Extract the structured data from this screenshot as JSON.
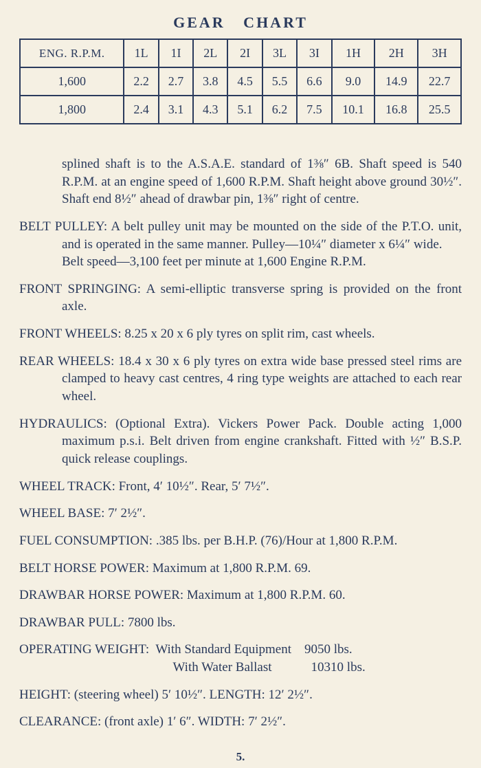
{
  "colors": {
    "background": "#f5f0e3",
    "text": "#2a3a5c",
    "border": "#2a3a5c"
  },
  "typography": {
    "font_family": "Georgia, 'Times New Roman', serif",
    "title_fontsize": 22,
    "body_fontsize": 19
  },
  "gear_chart": {
    "title": "GEAR CHART",
    "type": "table",
    "columns": [
      "ENG. R.P.M.",
      "1L",
      "1I",
      "2L",
      "2I",
      "3L",
      "3I",
      "1H",
      "2H",
      "3H"
    ],
    "rows": [
      [
        "1,600",
        "2.2",
        "2.7",
        "3.8",
        "4.5",
        "5.5",
        "6.6",
        "9.0",
        "14.9",
        "22.7"
      ],
      [
        "1,800",
        "2.4",
        "3.1",
        "4.3",
        "5.1",
        "6.2",
        "7.5",
        "10.1",
        "16.8",
        "25.5"
      ]
    ],
    "border_color": "#2a3a5c",
    "border_width": 2,
    "cell_fontsize": 18
  },
  "specs": [
    {
      "kind": "cont",
      "text": "splined shaft is to the A.S.A.E. standard of 1⅜″ 6B. Shaft speed is 540 R.P.M. at an engine speed of 1,600 R.P.M. Shaft height above ground 30½″. Shaft end 8½″ ahead of drawbar pin, 1⅜″ right of centre."
    },
    {
      "kind": "para",
      "text": "BELT PULLEY: A belt pulley unit may be mounted on the side of the P.T.O. unit, and is operated in the same manner. Pulley—10¼″ diameter x 6¼″ wide.\nBelt speed—3,100 feet per minute at 1,600 Engine R.P.M."
    },
    {
      "kind": "para",
      "text": "FRONT SPRINGING: A semi-elliptic transverse spring is provided on the front axle."
    },
    {
      "kind": "para",
      "text": "FRONT WHEELS: 8.25 x 20 x 6 ply tyres on split rim, cast wheels."
    },
    {
      "kind": "para",
      "text": "REAR WHEELS: 18.4 x 30 x 6 ply tyres on extra wide base pressed steel rims are clamped to heavy cast centres, 4 ring type weights are attached to each rear wheel."
    },
    {
      "kind": "para",
      "text": "HYDRAULICS: (Optional Extra). Vickers Power Pack. Double acting 1,000 maximum p.s.i. Belt driven from engine crankshaft. Fitted with ½″ B.S.P. quick release couplings."
    },
    {
      "kind": "para",
      "text": "WHEEL TRACK:  Front, 4′ 10½″.  Rear, 5′ 7½″."
    },
    {
      "kind": "para",
      "text": "WHEEL BASE:  7′ 2½″."
    },
    {
      "kind": "para",
      "text": "FUEL CONSUMPTION:  .385 lbs. per B.H.P. (76)/Hour at 1,800 R.P.M."
    },
    {
      "kind": "para",
      "text": "BELT HORSE POWER:  Maximum at 1,800 R.P.M. 69."
    },
    {
      "kind": "para",
      "text": "DRAWBAR HORSE POWER:  Maximum at 1,800 R.P.M. 60."
    },
    {
      "kind": "para",
      "text": "DRAWBAR PULL:  7800 lbs."
    },
    {
      "kind": "para",
      "text": "OPERATING WEIGHT:  With Standard Equipment    9050 lbs.\n                                  With Water Ballast            10310 lbs."
    },
    {
      "kind": "para",
      "text": "HEIGHT: (steering wheel) 5′ 10½″. LENGTH:  12′ 2½″."
    },
    {
      "kind": "para",
      "text": "CLEARANCE: (front axle) 1′ 6″.   WIDTH:  7′ 2½″."
    }
  ],
  "page_number": "5."
}
